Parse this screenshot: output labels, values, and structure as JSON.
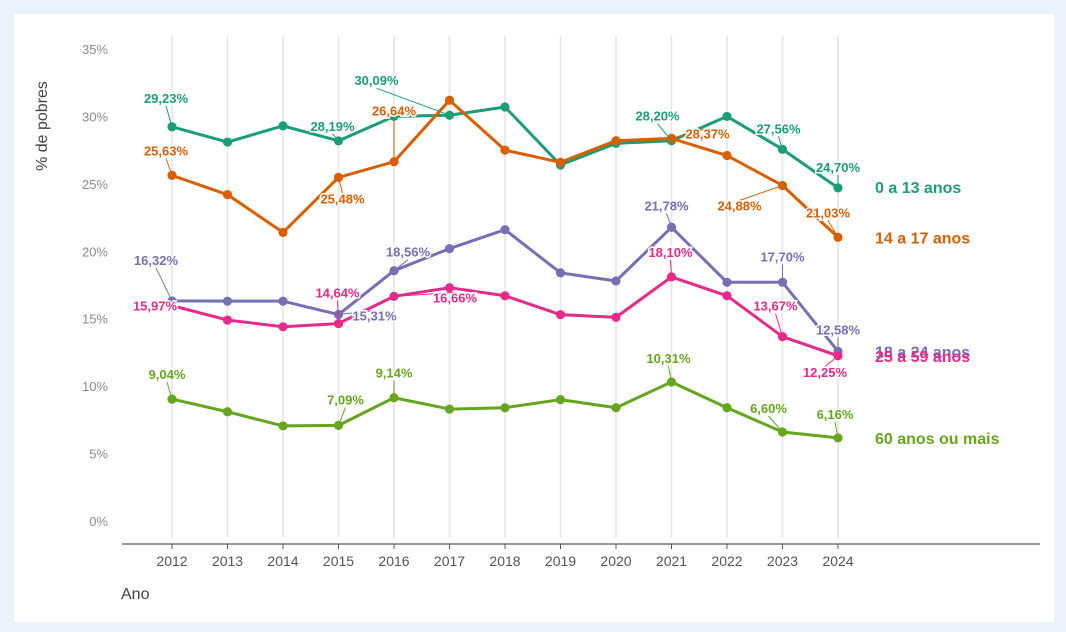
{
  "chart_data": {
    "type": "line",
    "title": "",
    "xlabel": "Ano",
    "ylabel": "% de pobres",
    "ylim": [
      0,
      35
    ],
    "yticks": [
      "0%",
      "5%",
      "10%",
      "15%",
      "20%",
      "25%",
      "30%",
      "35%"
    ],
    "ytick_values": [
      0,
      5,
      10,
      15,
      20,
      25,
      30,
      35
    ],
    "categories": [
      "2012",
      "2013",
      "2014",
      "2015",
      "2016",
      "2017",
      "2018",
      "2019",
      "2020",
      "2021",
      "2022",
      "2023",
      "2024"
    ],
    "grid": "vertical",
    "legend": "direct labels at right end",
    "series": [
      {
        "name": "0 a 13 anos",
        "color": "#1a9e77",
        "values": [
          29.23,
          28.1,
          29.3,
          28.19,
          30.0,
          30.09,
          30.7,
          26.4,
          28.0,
          28.2,
          30.0,
          27.56,
          24.7
        ],
        "labels": [
          {
            "i": 0,
            "text": "29,23%",
            "dx": -6,
            "dy": -24
          },
          {
            "i": 3,
            "text": "28,19%",
            "dx": -6,
            "dy": -10
          },
          {
            "i": 5,
            "text": "30,09%",
            "dx": -73,
            "dy": -30
          },
          {
            "i": 9,
            "text": "28,20%",
            "dx": -14,
            "dy": -20
          },
          {
            "i": 11,
            "text": "27,56%",
            "dx": -4,
            "dy": -16
          },
          {
            "i": 12,
            "text": "24,70%",
            "dx": 0,
            "dy": -16
          }
        ]
      },
      {
        "name": "14 a 17 anos",
        "color": "#d95f02",
        "values": [
          25.63,
          24.2,
          21.4,
          25.48,
          26.64,
          31.2,
          27.5,
          26.6,
          28.2,
          28.37,
          27.1,
          24.88,
          21.03
        ],
        "labels": [
          {
            "i": 0,
            "text": "25,63%",
            "dx": -6,
            "dy": -20
          },
          {
            "i": 3,
            "text": "25,48%",
            "dx": 4,
            "dy": 26
          },
          {
            "i": 4,
            "text": "26,64%",
            "dx": 0,
            "dy": -46
          },
          {
            "i": 9,
            "text": "28,37%",
            "dx": 36,
            "dy": 0
          },
          {
            "i": 11,
            "text": "24,88%",
            "dx": -43,
            "dy": 25
          },
          {
            "i": 12,
            "text": "21,03%",
            "dx": -10,
            "dy": -20
          }
        ]
      },
      {
        "name": "18 a 24 anos",
        "color": "#7570b3",
        "values": [
          16.32,
          16.3,
          16.3,
          15.31,
          18.56,
          20.2,
          21.6,
          18.4,
          17.8,
          21.78,
          17.7,
          17.7,
          12.58
        ],
        "labels": [
          {
            "i": 0,
            "text": "16,32%",
            "dx": -16,
            "dy": -36
          },
          {
            "i": 3,
            "text": "15,31%",
            "dx": 36,
            "dy": 6
          },
          {
            "i": 4,
            "text": "18,56%",
            "dx": 14,
            "dy": -14
          },
          {
            "i": 9,
            "text": "21,78%",
            "dx": -5,
            "dy": -17
          },
          {
            "i": 11,
            "text": "17,70%",
            "dx": 0,
            "dy": -21
          },
          {
            "i": 12,
            "text": "12,58%",
            "dx": 0,
            "dy": -17
          }
        ]
      },
      {
        "name": "25 a 59 anos",
        "color": "#e7298a",
        "values": [
          15.97,
          14.9,
          14.4,
          14.64,
          16.66,
          17.3,
          16.7,
          15.3,
          15.1,
          18.1,
          16.7,
          13.67,
          12.25
        ],
        "labels": [
          {
            "i": 0,
            "text": "15,97%",
            "dx": -17,
            "dy": 5
          },
          {
            "i": 3,
            "text": "14,64%",
            "dx": -1,
            "dy": -26
          },
          {
            "i": 4,
            "text": "16,66%",
            "dx": 61,
            "dy": 6
          },
          {
            "i": 9,
            "text": "18,10%",
            "dx": -1,
            "dy": -20
          },
          {
            "i": 11,
            "text": "13,67%",
            "dx": -7,
            "dy": -26
          },
          {
            "i": 12,
            "text": "12,25%",
            "dx": -13,
            "dy": 21
          }
        ]
      },
      {
        "name": "60 anos ou mais",
        "color": "#66a61e",
        "values": [
          9.04,
          8.1,
          7.05,
          7.09,
          9.14,
          8.3,
          8.4,
          9.0,
          8.4,
          10.31,
          8.4,
          6.6,
          6.16
        ],
        "labels": [
          {
            "i": 0,
            "text": "9,04%",
            "dx": -5,
            "dy": -20
          },
          {
            "i": 3,
            "text": "7,09%",
            "dx": 7,
            "dy": -21
          },
          {
            "i": 4,
            "text": "9,14%",
            "dx": 0,
            "dy": -20
          },
          {
            "i": 9,
            "text": "10,31%",
            "dx": -3,
            "dy": -19
          },
          {
            "i": 11,
            "text": "6,60%",
            "dx": -14,
            "dy": -19
          },
          {
            "i": 12,
            "text": "6,16%",
            "dx": -3,
            "dy": -19
          }
        ]
      }
    ]
  }
}
